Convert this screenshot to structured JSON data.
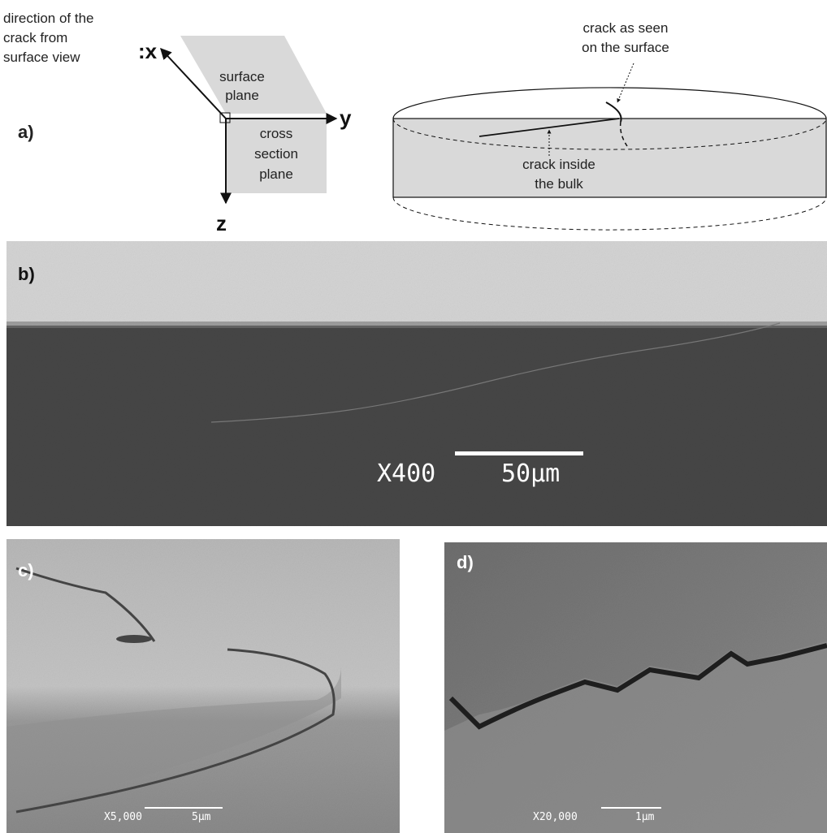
{
  "panel_a": {
    "label": "a)",
    "direction_note": [
      "direction of the",
      "crack from",
      "surface view"
    ],
    "axes": {
      "x": ":x",
      "y": "y",
      "z": "z"
    },
    "surface_plane": [
      "surface",
      "plane"
    ],
    "cross_section_plane": [
      "cross",
      "section",
      "plane"
    ],
    "crack_surface": [
      "crack as seen",
      "on the surface"
    ],
    "crack_bulk": [
      "crack inside",
      "the bulk"
    ]
  },
  "panel_b": {
    "label": "b)",
    "magnification": "X400",
    "scale": "50µm"
  },
  "panel_c": {
    "label": "c)",
    "magnification": "X5,000",
    "scale": "5µm"
  },
  "panel_d": {
    "label": "d)",
    "magnification": "X20,000",
    "scale": "1µm"
  }
}
